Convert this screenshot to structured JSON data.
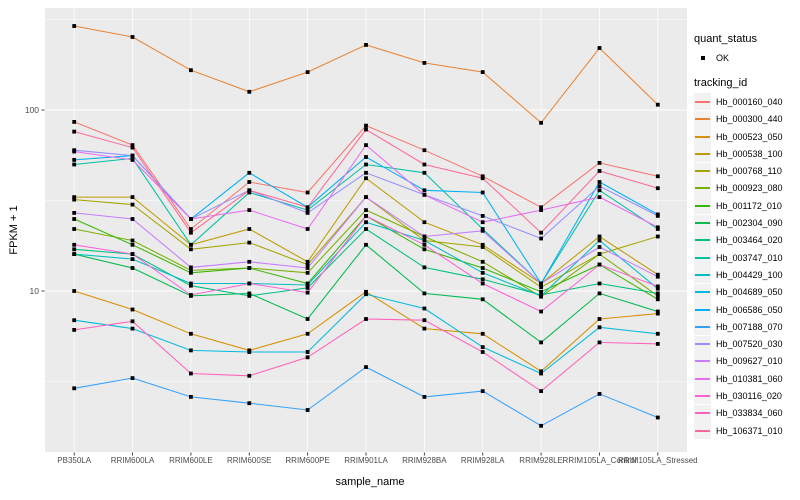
{
  "figure": {
    "x_axis_title": "sample_name",
    "y_axis_title": "FPKM + 1"
  },
  "legend": {
    "quant_status_title": "quant_status",
    "ok_label": "OK",
    "tracking_title": "tracking_id"
  },
  "colors": {
    "panel_bg": "#EBEBEB",
    "grid": "#FFFFFF",
    "tick_text": "#4D4D4D",
    "tick_mark": "#333333",
    "point": "#000000",
    "legend_key_bg": "#F2F2F2"
  },
  "chart_data": {
    "type": "line",
    "title": "",
    "xlabel": "sample_name",
    "ylabel": "FPKM + 1",
    "x_scale": "categorical",
    "y_scale": "log10",
    "ylim": [
      1.29,
      366
    ],
    "yticks": [
      100,
      10
    ],
    "minor_gridlines_at": [
      3.162,
      31.62,
      316.2
    ],
    "grid": true,
    "legend_position": "right",
    "point_marker": "black-square",
    "categories": [
      "PB350LA",
      "RRIM600LA",
      "RRIM600LE",
      "RRIM600SE",
      "RRIM600PE",
      "RRIM901LA",
      "RRIM928BA",
      "RRIM928LA",
      "RRIM928LE",
      "RRIM105LA_Control",
      "RRIM105LA_Stressed"
    ],
    "series": [
      {
        "name": "Hb_000160_040",
        "color": "#F8766D",
        "values": [
          86,
          64,
          22,
          40,
          35,
          82,
          60,
          43,
          29,
          51,
          43
        ]
      },
      {
        "name": "Hb_000300_440",
        "color": "#EA8331",
        "values": [
          291,
          253,
          166,
          126,
          162,
          229,
          182,
          162,
          85,
          220,
          107
        ]
      },
      {
        "name": "Hb_000523_050",
        "color": "#D89000",
        "values": [
          10,
          7.9,
          5.8,
          4.7,
          5.8,
          9.9,
          6.2,
          5.8,
          3.6,
          7.0,
          7.5
        ]
      },
      {
        "name": "Hb_000538_100",
        "color": "#C09B00",
        "values": [
          33,
          33,
          18,
          22,
          14.5,
          42,
          24,
          18,
          11,
          20,
          12.3
        ]
      },
      {
        "name": "Hb_000768_110",
        "color": "#A3A500",
        "values": [
          32,
          30,
          17,
          18.5,
          14,
          33,
          19,
          17.5,
          10.5,
          16,
          20
        ]
      },
      {
        "name": "Hb_000923_080",
        "color": "#7CAE00",
        "values": [
          22,
          19,
          13,
          13.4,
          12.6,
          28,
          20,
          14.5,
          9.3,
          16,
          9.4
        ]
      },
      {
        "name": "Hb_001172_010",
        "color": "#39B600",
        "values": [
          25,
          18,
          12.6,
          13.4,
          11,
          26,
          17,
          13.4,
          9.9,
          14,
          9.0
        ]
      },
      {
        "name": "Hb_002304_090",
        "color": "#00BB4E",
        "values": [
          16,
          13.4,
          9.4,
          9.7,
          7.0,
          18,
          9.7,
          9.0,
          5.2,
          9.7,
          7.7
        ]
      },
      {
        "name": "Hb_003464_020",
        "color": "#00BF7D",
        "values": [
          17,
          16,
          10.7,
          9.4,
          10.4,
          22,
          13.5,
          11.6,
          9.5,
          11,
          9.7
        ]
      },
      {
        "name": "Hb_003747_010",
        "color": "#00C1A3",
        "values": [
          50,
          54,
          18,
          35,
          28,
          50,
          45,
          22,
          11,
          36,
          22
        ]
      },
      {
        "name": "Hb_004429_100",
        "color": "#00BFC4",
        "values": [
          16,
          15,
          11,
          11,
          10.8,
          24,
          19,
          12.6,
          9.4,
          19,
          10.3
        ]
      },
      {
        "name": "Hb_004689_050",
        "color": "#00BAE0",
        "values": [
          6.9,
          6.2,
          4.7,
          4.6,
          4.6,
          9.6,
          8.0,
          4.9,
          3.5,
          6.3,
          5.8
        ]
      },
      {
        "name": "Hb_006586_050",
        "color": "#00B0F6",
        "values": [
          53,
          56,
          25,
          45,
          29,
          55,
          36,
          35,
          11,
          40,
          26.5
        ]
      },
      {
        "name": "Hb_007188_070",
        "color": "#35A2FF",
        "values": [
          2.9,
          3.3,
          2.6,
          2.4,
          2.2,
          3.8,
          2.6,
          2.8,
          1.8,
          2.7,
          2.0
        ]
      },
      {
        "name": "Hb_007520_030",
        "color": "#9590FF",
        "values": [
          60,
          56,
          25,
          36,
          27,
          45,
          34,
          26,
          19.5,
          38,
          26
        ]
      },
      {
        "name": "Hb_009627_010",
        "color": "#C77CFF",
        "values": [
          27,
          25,
          13.5,
          14.5,
          13.4,
          33,
          20,
          21.5,
          11,
          17.5,
          12
        ]
      },
      {
        "name": "Hb_010381_060",
        "color": "#E76BF3",
        "values": [
          59,
          53,
          25,
          28,
          22,
          64,
          34,
          24,
          28,
          33,
          22.5
        ]
      },
      {
        "name": "Hb_030116_020",
        "color": "#FA62DB",
        "values": [
          18,
          16,
          9.5,
          11,
          9.8,
          26,
          18,
          11,
          7.7,
          14,
          10.6
        ]
      },
      {
        "name": "Hb_033834_060",
        "color": "#FF62BC",
        "values": [
          6.1,
          6.8,
          3.5,
          3.4,
          4.3,
          7.0,
          6.9,
          4.6,
          2.8,
          5.2,
          5.1
        ]
      },
      {
        "name": "Hb_106371_010",
        "color": "#FF6A98",
        "values": [
          76,
          62,
          21,
          36,
          29,
          78,
          50,
          42,
          21,
          46,
          37
        ]
      }
    ]
  }
}
